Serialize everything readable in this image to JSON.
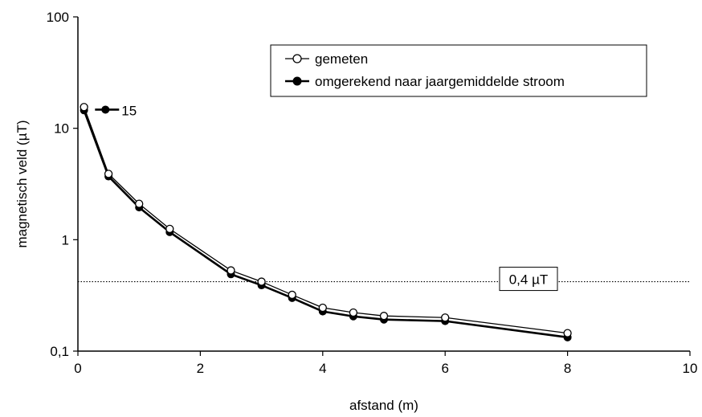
{
  "chart_data": {
    "type": "line",
    "xlabel": "afstand (m)",
    "ylabel": "magnetisch veld (µT)",
    "xlim": [
      0,
      10
    ],
    "ylim": [
      0.1,
      100
    ],
    "yscale": "log",
    "grid": false,
    "legend_position": "top-right",
    "x_ticks": [
      "0",
      "2",
      "4",
      "6",
      "8",
      "10"
    ],
    "y_ticks": [
      "0,1",
      "1",
      "10",
      "100"
    ],
    "series": [
      {
        "name": "gemeten",
        "marker": "open-circle",
        "color": "#000000",
        "x": [
          0.1,
          0.5,
          1.0,
          1.5,
          2.5,
          3.0,
          3.5,
          4.0,
          4.5,
          5.0,
          6.0,
          8.0
        ],
        "y": [
          15.5,
          3.9,
          2.1,
          1.25,
          0.53,
          0.42,
          0.32,
          0.245,
          0.222,
          0.207,
          0.2,
          0.145
        ]
      },
      {
        "name": "omgerekend naar jaargemiddelde stroom",
        "marker": "filled-circle",
        "color": "#000000",
        "x": [
          0.1,
          0.5,
          1.0,
          1.5,
          2.5,
          3.0,
          3.5,
          4.0,
          4.5,
          5.0,
          6.0,
          8.0
        ],
        "y": [
          14.5,
          3.7,
          1.95,
          1.17,
          0.49,
          0.39,
          0.3,
          0.227,
          0.205,
          0.192,
          0.186,
          0.133
        ]
      }
    ],
    "reference_line": {
      "y": 0.42,
      "label": "0,4 µT",
      "style": "dotted"
    },
    "annotations": [
      {
        "text": "15",
        "x": 0.45,
        "y": 14.7
      }
    ]
  }
}
